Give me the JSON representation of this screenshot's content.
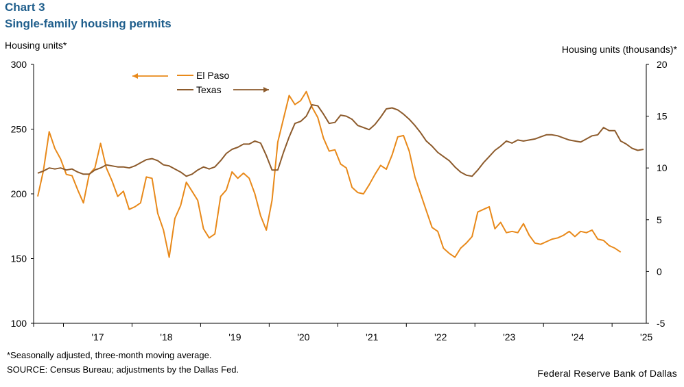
{
  "header": {
    "chart_number": "Chart 3",
    "title": "Single-family housing permits"
  },
  "axes": {
    "left_unit": "Housing units*",
    "right_unit": "Housing units (thousands)*"
  },
  "footer": {
    "footnote": "*Seasonally adjusted, three-month moving average.",
    "source": "SOURCE: Census Bureau; adjustments by the Dallas Fed.",
    "credit": "Federal Reserve Bank of Dallas"
  },
  "colors": {
    "el_paso": "#e8891a",
    "texas": "#8c5a2b",
    "axis": "#000000"
  },
  "chart_data": {
    "type": "line",
    "x_start": "2016-08",
    "x_interval": "month",
    "x_ticks": [
      "'17",
      "'18",
      "'19",
      "'20",
      "'21",
      "'22",
      "'23",
      "'24",
      "'25"
    ],
    "left_axis": {
      "min": 100,
      "max": 300,
      "ticks": [
        100,
        150,
        200,
        250,
        300
      ]
    },
    "right_axis": {
      "min": -5,
      "max": 20,
      "ticks": [
        -5,
        0,
        5,
        10,
        15,
        20
      ]
    },
    "grid": false,
    "legend": [
      {
        "name": "El Paso",
        "axis": "left"
      },
      {
        "name": "Texas",
        "axis": "right"
      }
    ],
    "series": [
      {
        "name": "El Paso",
        "axis": "left",
        "values": [
          198,
          218,
          248,
          235,
          227,
          215,
          214,
          203,
          193,
          215,
          220,
          239,
          220,
          210,
          198,
          202,
          188,
          190,
          193,
          213,
          212,
          185,
          172,
          151,
          181,
          191,
          209,
          202,
          195,
          173,
          166,
          169,
          198,
          203,
          217,
          212,
          216,
          212,
          200,
          183,
          172,
          195,
          240,
          258,
          276,
          269,
          272,
          279,
          267,
          259,
          243,
          233,
          234,
          223,
          220,
          205,
          201,
          200,
          207,
          215,
          222,
          219,
          230,
          244,
          245,
          233,
          213,
          200,
          187,
          174,
          171,
          158,
          154,
          151,
          158,
          162,
          167,
          186,
          188,
          190,
          173,
          178,
          170,
          171,
          170,
          177,
          168,
          162,
          161,
          163,
          165,
          166,
          168,
          171,
          167,
          171,
          170,
          172,
          165,
          164,
          160,
          158,
          155
        ]
      },
      {
        "name": "Texas",
        "axis": "right",
        "values": [
          9.5,
          9.7,
          10.0,
          9.9,
          10.0,
          9.8,
          9.9,
          9.6,
          9.4,
          9.4,
          9.8,
          10.0,
          10.3,
          10.2,
          10.1,
          10.1,
          10.0,
          10.2,
          10.5,
          10.8,
          10.9,
          10.7,
          10.3,
          10.2,
          9.9,
          9.6,
          9.2,
          9.4,
          9.8,
          10.1,
          9.9,
          10.1,
          10.7,
          11.4,
          11.8,
          12.0,
          12.3,
          12.3,
          12.6,
          12.4,
          11.2,
          9.8,
          9.8,
          11.5,
          13.0,
          14.3,
          14.5,
          15.0,
          16.1,
          16.0,
          15.2,
          14.3,
          14.4,
          15.1,
          15.0,
          14.7,
          14.1,
          13.9,
          13.7,
          14.2,
          14.9,
          15.7,
          15.8,
          15.6,
          15.2,
          14.7,
          14.1,
          13.4,
          12.6,
          12.1,
          11.5,
          11.1,
          10.7,
          10.1,
          9.6,
          9.3,
          9.2,
          9.8,
          10.5,
          11.1,
          11.7,
          12.1,
          12.6,
          12.4,
          12.7,
          12.6,
          12.7,
          12.8,
          13.0,
          13.2,
          13.2,
          13.1,
          12.9,
          12.7,
          12.6,
          12.5,
          12.8,
          13.1,
          13.2,
          13.9,
          13.6,
          13.6,
          12.6,
          12.3,
          11.9,
          11.7,
          11.8
        ]
      }
    ]
  }
}
